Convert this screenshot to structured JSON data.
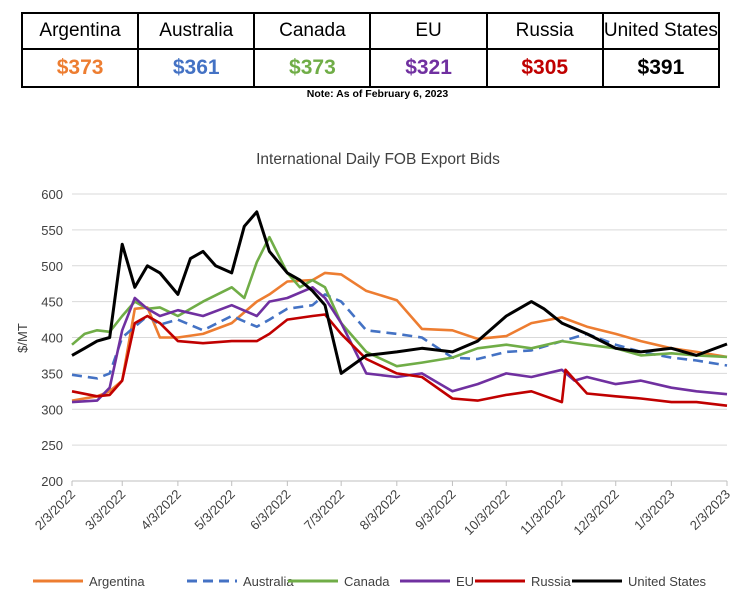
{
  "summary": {
    "columns": [
      {
        "country": "Argentina",
        "price": "$373",
        "color": "#ED7D31"
      },
      {
        "country": "Australia",
        "price": "$361",
        "color": "#4472C4"
      },
      {
        "country": "Canada",
        "price": "$373",
        "color": "#70AD47"
      },
      {
        "country": "EU",
        "price": "$321",
        "color": "#7030A0"
      },
      {
        "country": "Russia",
        "price": "$305",
        "color": "#C00000"
      },
      {
        "country": "United States",
        "price": "$391",
        "color": "#000000"
      }
    ],
    "note": "Note: As of February 6, 2023"
  },
  "chart_data": {
    "type": "line",
    "title": "International Daily FOB Export Bids",
    "xlabel": "",
    "ylabel": "$/MT",
    "ylim": [
      200,
      600
    ],
    "yticks": [
      200,
      250,
      300,
      350,
      400,
      450,
      500,
      550,
      600
    ],
    "xticks": [
      "2/3/2022",
      "3/3/2022",
      "4/3/2022",
      "5/3/2022",
      "6/3/2022",
      "7/3/2022",
      "8/3/2022",
      "9/3/2022",
      "10/3/2022",
      "11/3/2022",
      "12/3/2022",
      "1/3/2023",
      "2/3/2023"
    ],
    "grid": "horizontal",
    "legend_position": "bottom",
    "series": [
      {
        "name": "Argentina",
        "color": "#ED7D31",
        "dash": "solid",
        "x": [
          "2/3/2022",
          "2/17/2022",
          "2/24/2022",
          "3/3/2022",
          "3/10/2022",
          "3/17/2022",
          "3/24/2022",
          "4/3/2022",
          "4/17/2022",
          "5/3/2022",
          "5/17/2022",
          "5/24/2022",
          "6/3/2022",
          "6/17/2022",
          "6/24/2022",
          "7/3/2022",
          "7/17/2022",
          "8/3/2022",
          "8/17/2022",
          "9/3/2022",
          "9/17/2022",
          "10/3/2022",
          "10/17/2022",
          "11/3/2022",
          "11/17/2022",
          "12/3/2022",
          "12/17/2022",
          "1/3/2023",
          "1/17/2023",
          "2/3/2023"
        ],
        "y": [
          312,
          318,
          325,
          340,
          440,
          442,
          400,
          400,
          405,
          420,
          450,
          460,
          478,
          480,
          490,
          488,
          465,
          452,
          412,
          410,
          398,
          402,
          420,
          428,
          415,
          405,
          395,
          385,
          380,
          373
        ]
      },
      {
        "name": "Australia",
        "color": "#4472C4",
        "dash": "dashed",
        "x": [
          "2/3/2022",
          "2/17/2022",
          "2/24/2022",
          "3/3/2022",
          "3/10/2022",
          "3/17/2022",
          "3/24/2022",
          "4/3/2022",
          "4/17/2022",
          "5/3/2022",
          "5/17/2022",
          "5/24/2022",
          "6/3/2022",
          "6/17/2022",
          "6/24/2022",
          "7/3/2022",
          "7/17/2022",
          "8/3/2022",
          "8/17/2022",
          "9/3/2022",
          "9/17/2022",
          "10/3/2022",
          "10/17/2022",
          "11/3/2022",
          "11/17/2022",
          "12/3/2022",
          "12/17/2022",
          "1/3/2023",
          "1/17/2023",
          "2/3/2023"
        ],
        "y": [
          348,
          343,
          350,
          400,
          415,
          430,
          418,
          425,
          410,
          430,
          415,
          425,
          440,
          445,
          460,
          450,
          410,
          405,
          400,
          372,
          370,
          380,
          382,
          395,
          405,
          390,
          380,
          372,
          368,
          361
        ]
      },
      {
        "name": "Canada",
        "color": "#70AD47",
        "dash": "solid",
        "x": [
          "2/3/2022",
          "2/10/2022",
          "2/17/2022",
          "2/24/2022",
          "3/3/2022",
          "3/10/2022",
          "3/17/2022",
          "3/24/2022",
          "4/3/2022",
          "4/17/2022",
          "5/3/2022",
          "5/10/2022",
          "5/17/2022",
          "5/24/2022",
          "6/3/2022",
          "6/10/2022",
          "6/17/2022",
          "6/24/2022",
          "7/3/2022",
          "7/17/2022",
          "8/3/2022",
          "8/17/2022",
          "9/3/2022",
          "9/17/2022",
          "10/3/2022",
          "10/17/2022",
          "11/3/2022",
          "11/17/2022",
          "12/3/2022",
          "12/17/2022",
          "1/3/2023",
          "1/17/2023",
          "2/3/2023"
        ],
        "y": [
          390,
          405,
          410,
          408,
          430,
          450,
          440,
          442,
          430,
          450,
          470,
          455,
          505,
          540,
          490,
          470,
          480,
          470,
          420,
          380,
          360,
          365,
          372,
          385,
          390,
          385,
          395,
          390,
          385,
          375,
          378,
          375,
          373
        ]
      },
      {
        "name": "EU",
        "color": "#7030A0",
        "dash": "solid",
        "x": [
          "2/3/2022",
          "2/17/2022",
          "2/24/2022",
          "3/3/2022",
          "3/10/2022",
          "3/17/2022",
          "3/24/2022",
          "4/3/2022",
          "4/17/2022",
          "5/3/2022",
          "5/17/2022",
          "5/24/2022",
          "6/3/2022",
          "6/17/2022",
          "6/24/2022",
          "7/3/2022",
          "7/17/2022",
          "8/3/2022",
          "8/17/2022",
          "9/3/2022",
          "9/17/2022",
          "10/3/2022",
          "10/17/2022",
          "11/3/2022",
          "11/10/2022",
          "11/17/2022",
          "12/3/2022",
          "12/17/2022",
          "1/3/2023",
          "1/17/2023",
          "2/3/2023"
        ],
        "y": [
          310,
          312,
          330,
          410,
          455,
          440,
          430,
          438,
          430,
          445,
          430,
          450,
          455,
          470,
          455,
          420,
          350,
          345,
          350,
          325,
          335,
          350,
          345,
          355,
          340,
          345,
          335,
          340,
          330,
          325,
          321
        ]
      },
      {
        "name": "Russia",
        "color": "#C00000",
        "dash": "solid",
        "x": [
          "2/3/2022",
          "2/17/2022",
          "2/24/2022",
          "3/3/2022",
          "3/10/2022",
          "3/17/2022",
          "3/24/2022",
          "4/3/2022",
          "4/17/2022",
          "5/3/2022",
          "5/17/2022",
          "5/24/2022",
          "6/3/2022",
          "6/17/2022",
          "6/24/2022",
          "7/3/2022",
          "7/17/2022",
          "8/3/2022",
          "8/17/2022",
          "9/3/2022",
          "9/17/2022",
          "10/3/2022",
          "10/17/2022",
          "11/3/2022",
          "11/5/2022",
          "11/17/2022",
          "12/3/2022",
          "12/17/2022",
          "1/3/2023",
          "1/17/2023",
          "2/3/2023"
        ],
        "y": [
          325,
          318,
          320,
          340,
          420,
          430,
          420,
          395,
          392,
          395,
          395,
          405,
          425,
          430,
          432,
          405,
          370,
          350,
          345,
          315,
          312,
          320,
          325,
          310,
          355,
          322,
          318,
          315,
          310,
          310,
          305
        ]
      },
      {
        "name": "United States",
        "color": "#000000",
        "dash": "solid",
        "x": [
          "2/3/2022",
          "2/10/2022",
          "2/17/2022",
          "2/24/2022",
          "3/3/2022",
          "3/10/2022",
          "3/17/2022",
          "3/24/2022",
          "4/3/2022",
          "4/10/2022",
          "4/17/2022",
          "4/24/2022",
          "5/3/2022",
          "5/10/2022",
          "5/17/2022",
          "5/24/2022",
          "6/3/2022",
          "6/10/2022",
          "6/17/2022",
          "6/24/2022",
          "7/3/2022",
          "7/17/2022",
          "8/3/2022",
          "8/17/2022",
          "9/3/2022",
          "9/17/2022",
          "10/3/2022",
          "10/10/2022",
          "10/17/2022",
          "10/24/2022",
          "11/3/2022",
          "11/17/2022",
          "12/3/2022",
          "12/17/2022",
          "1/3/2023",
          "1/17/2023",
          "2/3/2023"
        ],
        "y": [
          375,
          385,
          395,
          400,
          530,
          470,
          500,
          490,
          460,
          510,
          520,
          500,
          490,
          555,
          575,
          520,
          490,
          480,
          465,
          445,
          350,
          375,
          380,
          385,
          380,
          395,
          430,
          440,
          450,
          440,
          420,
          405,
          385,
          380,
          385,
          375,
          391
        ]
      }
    ]
  }
}
